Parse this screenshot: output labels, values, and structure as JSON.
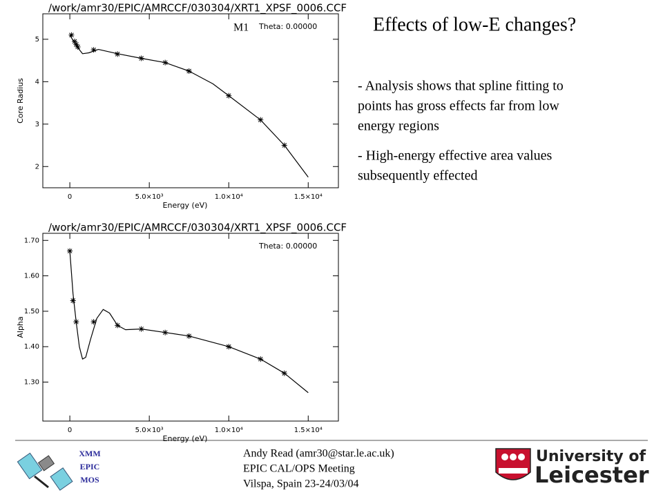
{
  "slide": {
    "title": "Effects of low-E changes?",
    "bullets": [
      [
        "- Analysis shows that spline fitting to",
        "points has gross effects far from low",
        "energy regions"
      ],
      [
        "- High-energy effective area values",
        "subsequently effected"
      ]
    ],
    "footer": {
      "mission": [
        "XMM",
        "EPIC",
        "MOS"
      ],
      "author": [
        "Andy Read (amr30@star.le.ac.uk)",
        "EPIC CAL/OPS Meeting",
        "Vilspa, Spain 23-24/03/04"
      ],
      "logo": [
        "University of",
        "Leicester"
      ]
    }
  },
  "chart_data": [
    {
      "type": "line",
      "title": "/work/amr30/EPIC/AMRCCF/030304/XRT1_XPSF_0006.CCF",
      "x_label": "Energy (eV)",
      "y_label": "Core Radius",
      "annotations": [
        "Theta: 0.00000",
        "M1"
      ],
      "x": [
        100,
        300,
        400,
        500,
        1500,
        3000,
        4500,
        6000,
        7500,
        10000,
        12000,
        13500
      ],
      "values": [
        5.1,
        4.95,
        4.88,
        4.82,
        4.75,
        4.65,
        4.55,
        4.45,
        4.25,
        3.67,
        3.1,
        2.5
      ],
      "curve_x": [
        0,
        400,
        800,
        1200,
        1800,
        3000,
        4500,
        6000,
        7500,
        9000,
        10000,
        12000,
        13500,
        15000
      ],
      "curve_values": [
        5.1,
        4.85,
        4.66,
        4.68,
        4.76,
        4.66,
        4.55,
        4.45,
        4.25,
        3.95,
        3.67,
        3.1,
        2.5,
        1.75
      ],
      "xlim": [
        -1700,
        16900
      ],
      "ylim": [
        1.5,
        5.6
      ],
      "xticks": [
        0,
        {
          "value": 5000,
          "label": "5.0×10³"
        },
        {
          "value": 10000,
          "label": "1.0×10⁴"
        },
        {
          "value": 15000,
          "label": "1.5×10⁴"
        }
      ],
      "yticks": [
        2,
        3,
        4,
        5
      ],
      "color": "#000000"
    },
    {
      "type": "line",
      "title": "/work/amr30/EPIC/AMRCCF/030304/XRT1_XPSF_0006.CCF",
      "x_label": "Energy (eV)",
      "y_label": "Alpha",
      "annotations": [
        "Theta: 0.00000"
      ],
      "x": [
        0,
        200,
        400,
        1500,
        3000,
        4500,
        6000,
        7500,
        10000,
        12000,
        13500
      ],
      "values": [
        1.67,
        1.53,
        1.47,
        1.47,
        1.46,
        1.45,
        1.44,
        1.43,
        1.4,
        1.365,
        1.325
      ],
      "curve_x": [
        0,
        200,
        400,
        600,
        800,
        1000,
        1300,
        1700,
        2100,
        2500,
        3000,
        3500,
        4500,
        6000,
        7500,
        10000,
        12000,
        13500,
        15000
      ],
      "curve_values": [
        1.67,
        1.55,
        1.47,
        1.4,
        1.365,
        1.37,
        1.42,
        1.48,
        1.505,
        1.495,
        1.46,
        1.448,
        1.45,
        1.44,
        1.43,
        1.4,
        1.365,
        1.325,
        1.27
      ],
      "xlim": [
        -1700,
        16900
      ],
      "ylim": [
        1.19,
        1.72
      ],
      "xticks": [
        0,
        {
          "value": 5000,
          "label": "5.0×10³"
        },
        {
          "value": 10000,
          "label": "1.0×10⁴"
        },
        {
          "value": 15000,
          "label": "1.5×10⁴"
        }
      ],
      "yticks": [
        {
          "value": 1.3,
          "label": "1.30"
        },
        {
          "value": 1.4,
          "label": "1.40"
        },
        {
          "value": 1.5,
          "label": "1.50"
        },
        {
          "value": 1.6,
          "label": "1.60"
        },
        {
          "value": 1.7,
          "label": "1.70"
        }
      ],
      "color": "#000000"
    }
  ]
}
